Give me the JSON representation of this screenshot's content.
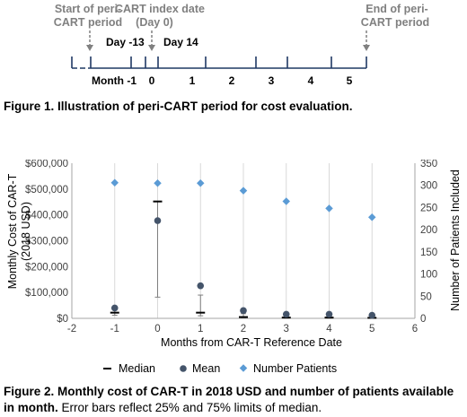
{
  "figure1": {
    "start_label": [
      "Start of peri-",
      "CART period"
    ],
    "index_label": [
      "CART index date",
      "(Day 0)"
    ],
    "end_label": [
      "End of peri-",
      "CART period"
    ],
    "day_labels": [
      "Day -13",
      "Day 14"
    ],
    "month_labels": [
      "Month -1",
      "0",
      "1",
      "2",
      "3",
      "4",
      "5"
    ],
    "caption_bold": "Figure 1. Illustration of peri-CART period for cost evaluation."
  },
  "figure2": {
    "caption_bold": "Figure 2. Monthly cost of CAR-T in 2018 USD and number of patients available in month.",
    "caption_text": " Error bars reflect 25% and 75% limits of median."
  },
  "chart_data": {
    "type": "scatter",
    "ylabel_lines": [
      "Monthly Cost of CAR-T",
      "(2018 USD)"
    ],
    "y2label": "Number of Patients Included",
    "xlabel": "Months from CAR-T Reference Date",
    "xlim": [
      -2,
      6
    ],
    "ylim": [
      0,
      600000
    ],
    "y2lim": [
      0,
      350
    ],
    "x_ticks": [
      "-2",
      "-1",
      "0",
      "1",
      "2",
      "3",
      "4",
      "5",
      "6"
    ],
    "y_ticks": [
      "$0",
      "$100,000",
      "$200,000",
      "$300,000",
      "$400,000",
      "$500,000",
      "$600,000"
    ],
    "y2_ticks": [
      "0",
      "50",
      "100",
      "150",
      "200",
      "250",
      "300",
      "350"
    ],
    "grid": "vertical",
    "legend": [
      "Median",
      "Mean",
      "Number Patients"
    ],
    "legend_position": "bottom",
    "x": [
      -1,
      0,
      1,
      2,
      3,
      4,
      5
    ],
    "series": [
      {
        "name": "Median",
        "values": [
          22000,
          452000,
          22000,
          5000,
          3000,
          3000,
          2000
        ],
        "error_low": [
          12000,
          82000,
          10000,
          2000,
          1000,
          1000,
          1000
        ],
        "error_high": [
          38000,
          452000,
          90000,
          18000,
          10000,
          8000,
          6000
        ]
      },
      {
        "name": "Mean",
        "values": [
          40000,
          378000,
          126000,
          30000,
          16000,
          16000,
          12000
        ]
      },
      {
        "name": "Number Patients",
        "axis": "right",
        "values": [
          306,
          305,
          305,
          288,
          264,
          248,
          228
        ]
      }
    ],
    "colors": {
      "median": "#000000",
      "mean": "#44546a",
      "patients": "#5b9bd5",
      "grid": "#d9d9d9",
      "axis": "#a6a6a6"
    }
  }
}
